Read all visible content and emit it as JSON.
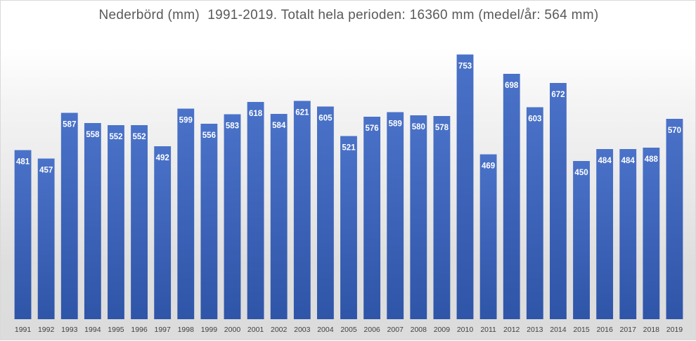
{
  "chart_data": {
    "type": "bar",
    "title": "Nederbörd (mm)  1991-2019. Totalt hela perioden: 16360 mm (medel/år: 564 mm)",
    "categories": [
      "1991",
      "1992",
      "1993",
      "1994",
      "1995",
      "1996",
      "1997",
      "1998",
      "1999",
      "2000",
      "2001",
      "2002",
      "2003",
      "2004",
      "2005",
      "2006",
      "2007",
      "2008",
      "2009",
      "2010",
      "2011",
      "2012",
      "2013",
      "2014",
      "2015",
      "2016",
      "2017",
      "2018",
      "2019"
    ],
    "series": [
      {
        "values": [
          481,
          457,
          587,
          558,
          552,
          552,
          492,
          599,
          556,
          583,
          618,
          584,
          621,
          605,
          521,
          576,
          589,
          580,
          578,
          753,
          469,
          698,
          603,
          672,
          450,
          484,
          484,
          488,
          570
        ]
      }
    ],
    "ylim": [
      0,
      780
    ],
    "grid": false,
    "legend": "none",
    "data_labels": true,
    "colors": {
      "bar_top": "#4a72c8",
      "bar_bottom": "#2f55a8",
      "label": "#ffffff",
      "tick": "#404040",
      "title": "#595959"
    }
  }
}
